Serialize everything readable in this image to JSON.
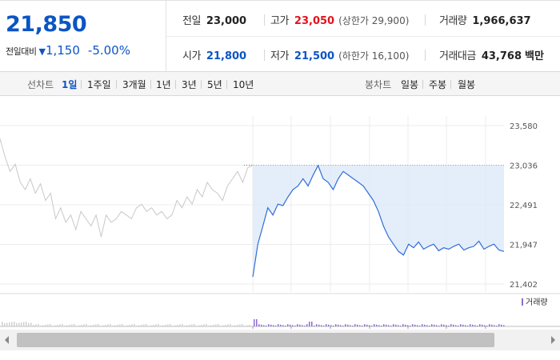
{
  "summary": {
    "current_price": "21,850",
    "change_label": "전일대비",
    "change_icon": "down-triangle-icon",
    "change_amount": "1,150",
    "change_percent": "-5.00%",
    "prev_close_label": "전일",
    "prev_close": "23,000",
    "high_label": "고가",
    "high": "23,050",
    "upper_limit": "(상한가 29,900)",
    "volume_label": "거래량",
    "volume": "1,966,637",
    "open_label": "시가",
    "open": "21,800",
    "low_label": "저가",
    "low": "21,500",
    "lower_limit": "(하한가 16,100)",
    "trade_value_label": "거래대금",
    "trade_value": "43,768",
    "trade_value_unit": "백만"
  },
  "tabs": {
    "line_label": "선차트",
    "line": [
      "1일",
      "1주일",
      "3개월",
      "1년",
      "3년",
      "5년",
      "10년"
    ],
    "active": "1일",
    "candle_label": "봉차트",
    "candle": [
      "일봉",
      "주봉",
      "월봉"
    ]
  },
  "chart_data": {
    "type": "line",
    "ylim": [
      21402,
      23580
    ],
    "yticks": [
      "23,580",
      "23,036",
      "22,491",
      "21,947",
      "21,402"
    ],
    "ytick_values": [
      23580,
      23036,
      22491,
      21947,
      21402
    ],
    "reference_line": 23036,
    "series": [
      {
        "role": "previous-day",
        "color": "#c8c8c8",
        "x": [
          0,
          2,
          4,
          6,
          8,
          10,
          12,
          14,
          16,
          18,
          20,
          22,
          24,
          26,
          28,
          30,
          32,
          34,
          36,
          38,
          40,
          42,
          44,
          46,
          48,
          50,
          52,
          54,
          56,
          58,
          60,
          62,
          64,
          66,
          68,
          70,
          72,
          74,
          76,
          78,
          80,
          82,
          84,
          86,
          88,
          90,
          92,
          94,
          96,
          98,
          100
        ],
        "values": [
          23400,
          23150,
          22950,
          23050,
          22800,
          22700,
          22850,
          22650,
          22780,
          22550,
          22650,
          22300,
          22450,
          22250,
          22350,
          22150,
          22400,
          22300,
          22200,
          22350,
          22050,
          22350,
          22250,
          22300,
          22400,
          22350,
          22300,
          22450,
          22500,
          22400,
          22450,
          22350,
          22400,
          22300,
          22350,
          22550,
          22450,
          22600,
          22500,
          22700,
          22600,
          22800,
          22700,
          22650,
          22550,
          22750,
          22850,
          22950,
          22800,
          23000,
          23036
        ]
      },
      {
        "role": "today",
        "color": "#2f6fd6",
        "x": [
          0,
          2,
          4,
          6,
          8,
          10,
          12,
          14,
          16,
          18,
          20,
          22,
          24,
          26,
          28,
          30,
          32,
          34,
          36,
          38,
          40,
          42,
          44,
          46,
          48,
          50,
          52,
          54,
          56,
          58,
          60,
          62,
          64,
          66,
          68,
          70,
          72,
          74,
          76,
          78,
          80,
          82,
          84,
          86,
          88,
          90,
          92,
          94,
          96,
          98,
          100
        ],
        "values": [
          21500,
          21950,
          22200,
          22450,
          22350,
          22500,
          22480,
          22600,
          22700,
          22750,
          22850,
          22750,
          22900,
          23030,
          22850,
          22800,
          22700,
          22850,
          22950,
          22900,
          22850,
          22800,
          22750,
          22650,
          22550,
          22400,
          22200,
          22050,
          21950,
          21850,
          21800,
          21950,
          21900,
          21980,
          21880,
          21920,
          21950,
          21860,
          21900,
          21880,
          21920,
          21950,
          21870,
          21900,
          21920,
          21990,
          21880,
          21920,
          21950,
          21870,
          21850
        ]
      }
    ],
    "volume_legend": "거래량",
    "volume_color": "#8c6bd6"
  }
}
